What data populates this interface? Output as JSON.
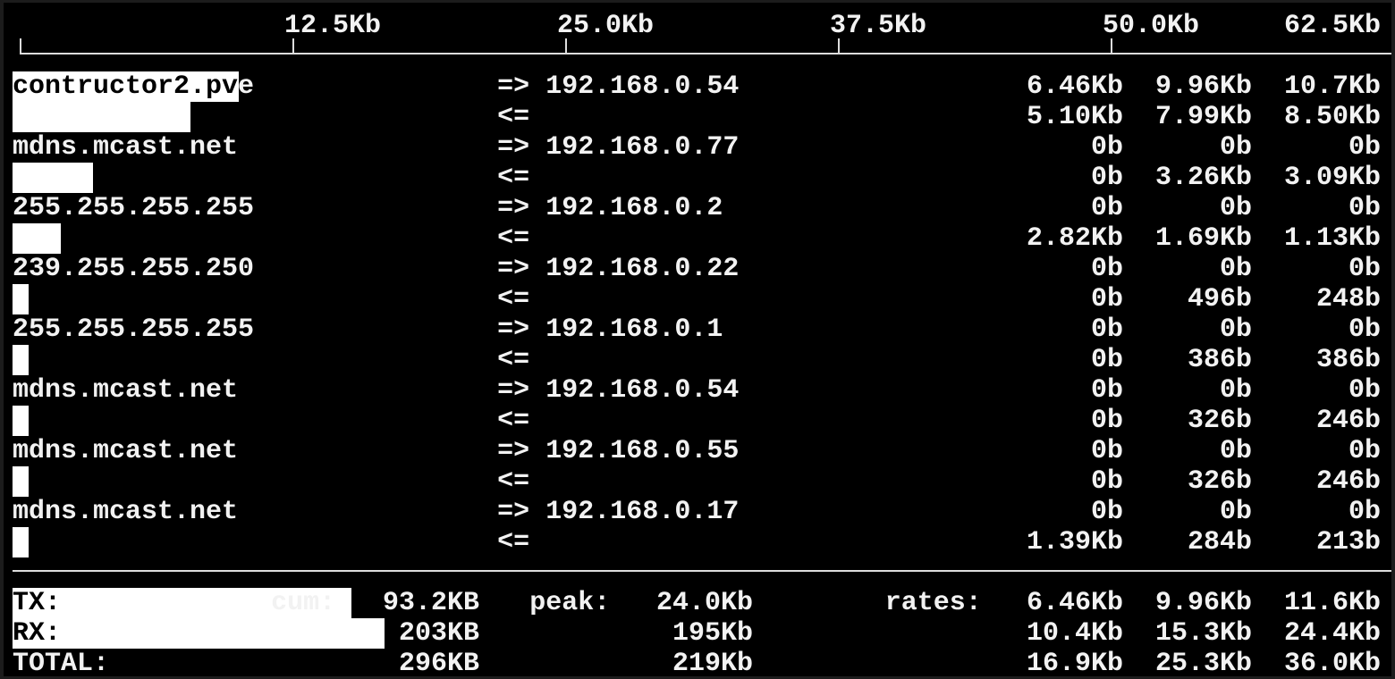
{
  "scale": {
    "labels": [
      "12.5Kb",
      "25.0Kb",
      "37.5Kb",
      "50.0Kb",
      "62.5Kb"
    ],
    "max_kb": 62.5
  },
  "hosts": [
    {
      "host": "contructor2.pve",
      "peer": "192.168.0.54",
      "tx": [
        "6.46Kb",
        "9.96Kb",
        "10.7Kb"
      ],
      "rx": [
        "5.10Kb",
        "7.99Kb",
        "8.50Kb"
      ]
    },
    {
      "host": "mdns.mcast.net",
      "peer": "192.168.0.77",
      "tx": [
        "0b",
        "0b",
        "0b"
      ],
      "rx": [
        "0b",
        "3.26Kb",
        "3.09Kb"
      ]
    },
    {
      "host": "255.255.255.255",
      "peer": "192.168.0.2",
      "tx": [
        "0b",
        "0b",
        "0b"
      ],
      "rx": [
        "2.82Kb",
        "1.69Kb",
        "1.13Kb"
      ]
    },
    {
      "host": "239.255.255.250",
      "peer": "192.168.0.22",
      "tx": [
        "0b",
        "0b",
        "0b"
      ],
      "rx": [
        "0b",
        "496b",
        "248b"
      ]
    },
    {
      "host": "255.255.255.255",
      "peer": "192.168.0.1",
      "tx": [
        "0b",
        "0b",
        "0b"
      ],
      "rx": [
        "0b",
        "386b",
        "386b"
      ]
    },
    {
      "host": "mdns.mcast.net",
      "peer": "192.168.0.54",
      "tx": [
        "0b",
        "0b",
        "0b"
      ],
      "rx": [
        "0b",
        "326b",
        "246b"
      ]
    },
    {
      "host": "mdns.mcast.net",
      "peer": "192.168.0.55",
      "tx": [
        "0b",
        "0b",
        "0b"
      ],
      "rx": [
        "0b",
        "326b",
        "246b"
      ]
    },
    {
      "host": "mdns.mcast.net",
      "peer": "192.168.0.17",
      "tx": [
        "0b",
        "0b",
        "0b"
      ],
      "rx": [
        "1.39Kb",
        "284b",
        "213b"
      ]
    }
  ],
  "arrows": {
    "tx": "=>",
    "rx": "<="
  },
  "totals": {
    "cum_label": "cum:",
    "peak_label": "peak:",
    "rates_label": "rates:",
    "rows": [
      {
        "label": "TX:",
        "cum": "93.2KB",
        "peak": "24.0Kb",
        "rates": [
          "6.46Kb",
          "9.96Kb",
          "11.6Kb"
        ],
        "bar_kb": 15.3
      },
      {
        "label": "RX:",
        "cum": "203KB",
        "peak": "195Kb",
        "rates": [
          "10.4Kb",
          "15.3Kb",
          "24.4Kb"
        ],
        "bar_kb": 17.0
      },
      {
        "label": "TOTAL:",
        "cum": "296KB",
        "peak": "219Kb",
        "rates": [
          "16.9Kb",
          "25.3Kb",
          "36.0Kb"
        ]
      }
    ]
  },
  "colors": {
    "background": "#000000",
    "text": "#f2f2f2",
    "bar": "#ffffff",
    "frame": "#1c1c1c"
  }
}
